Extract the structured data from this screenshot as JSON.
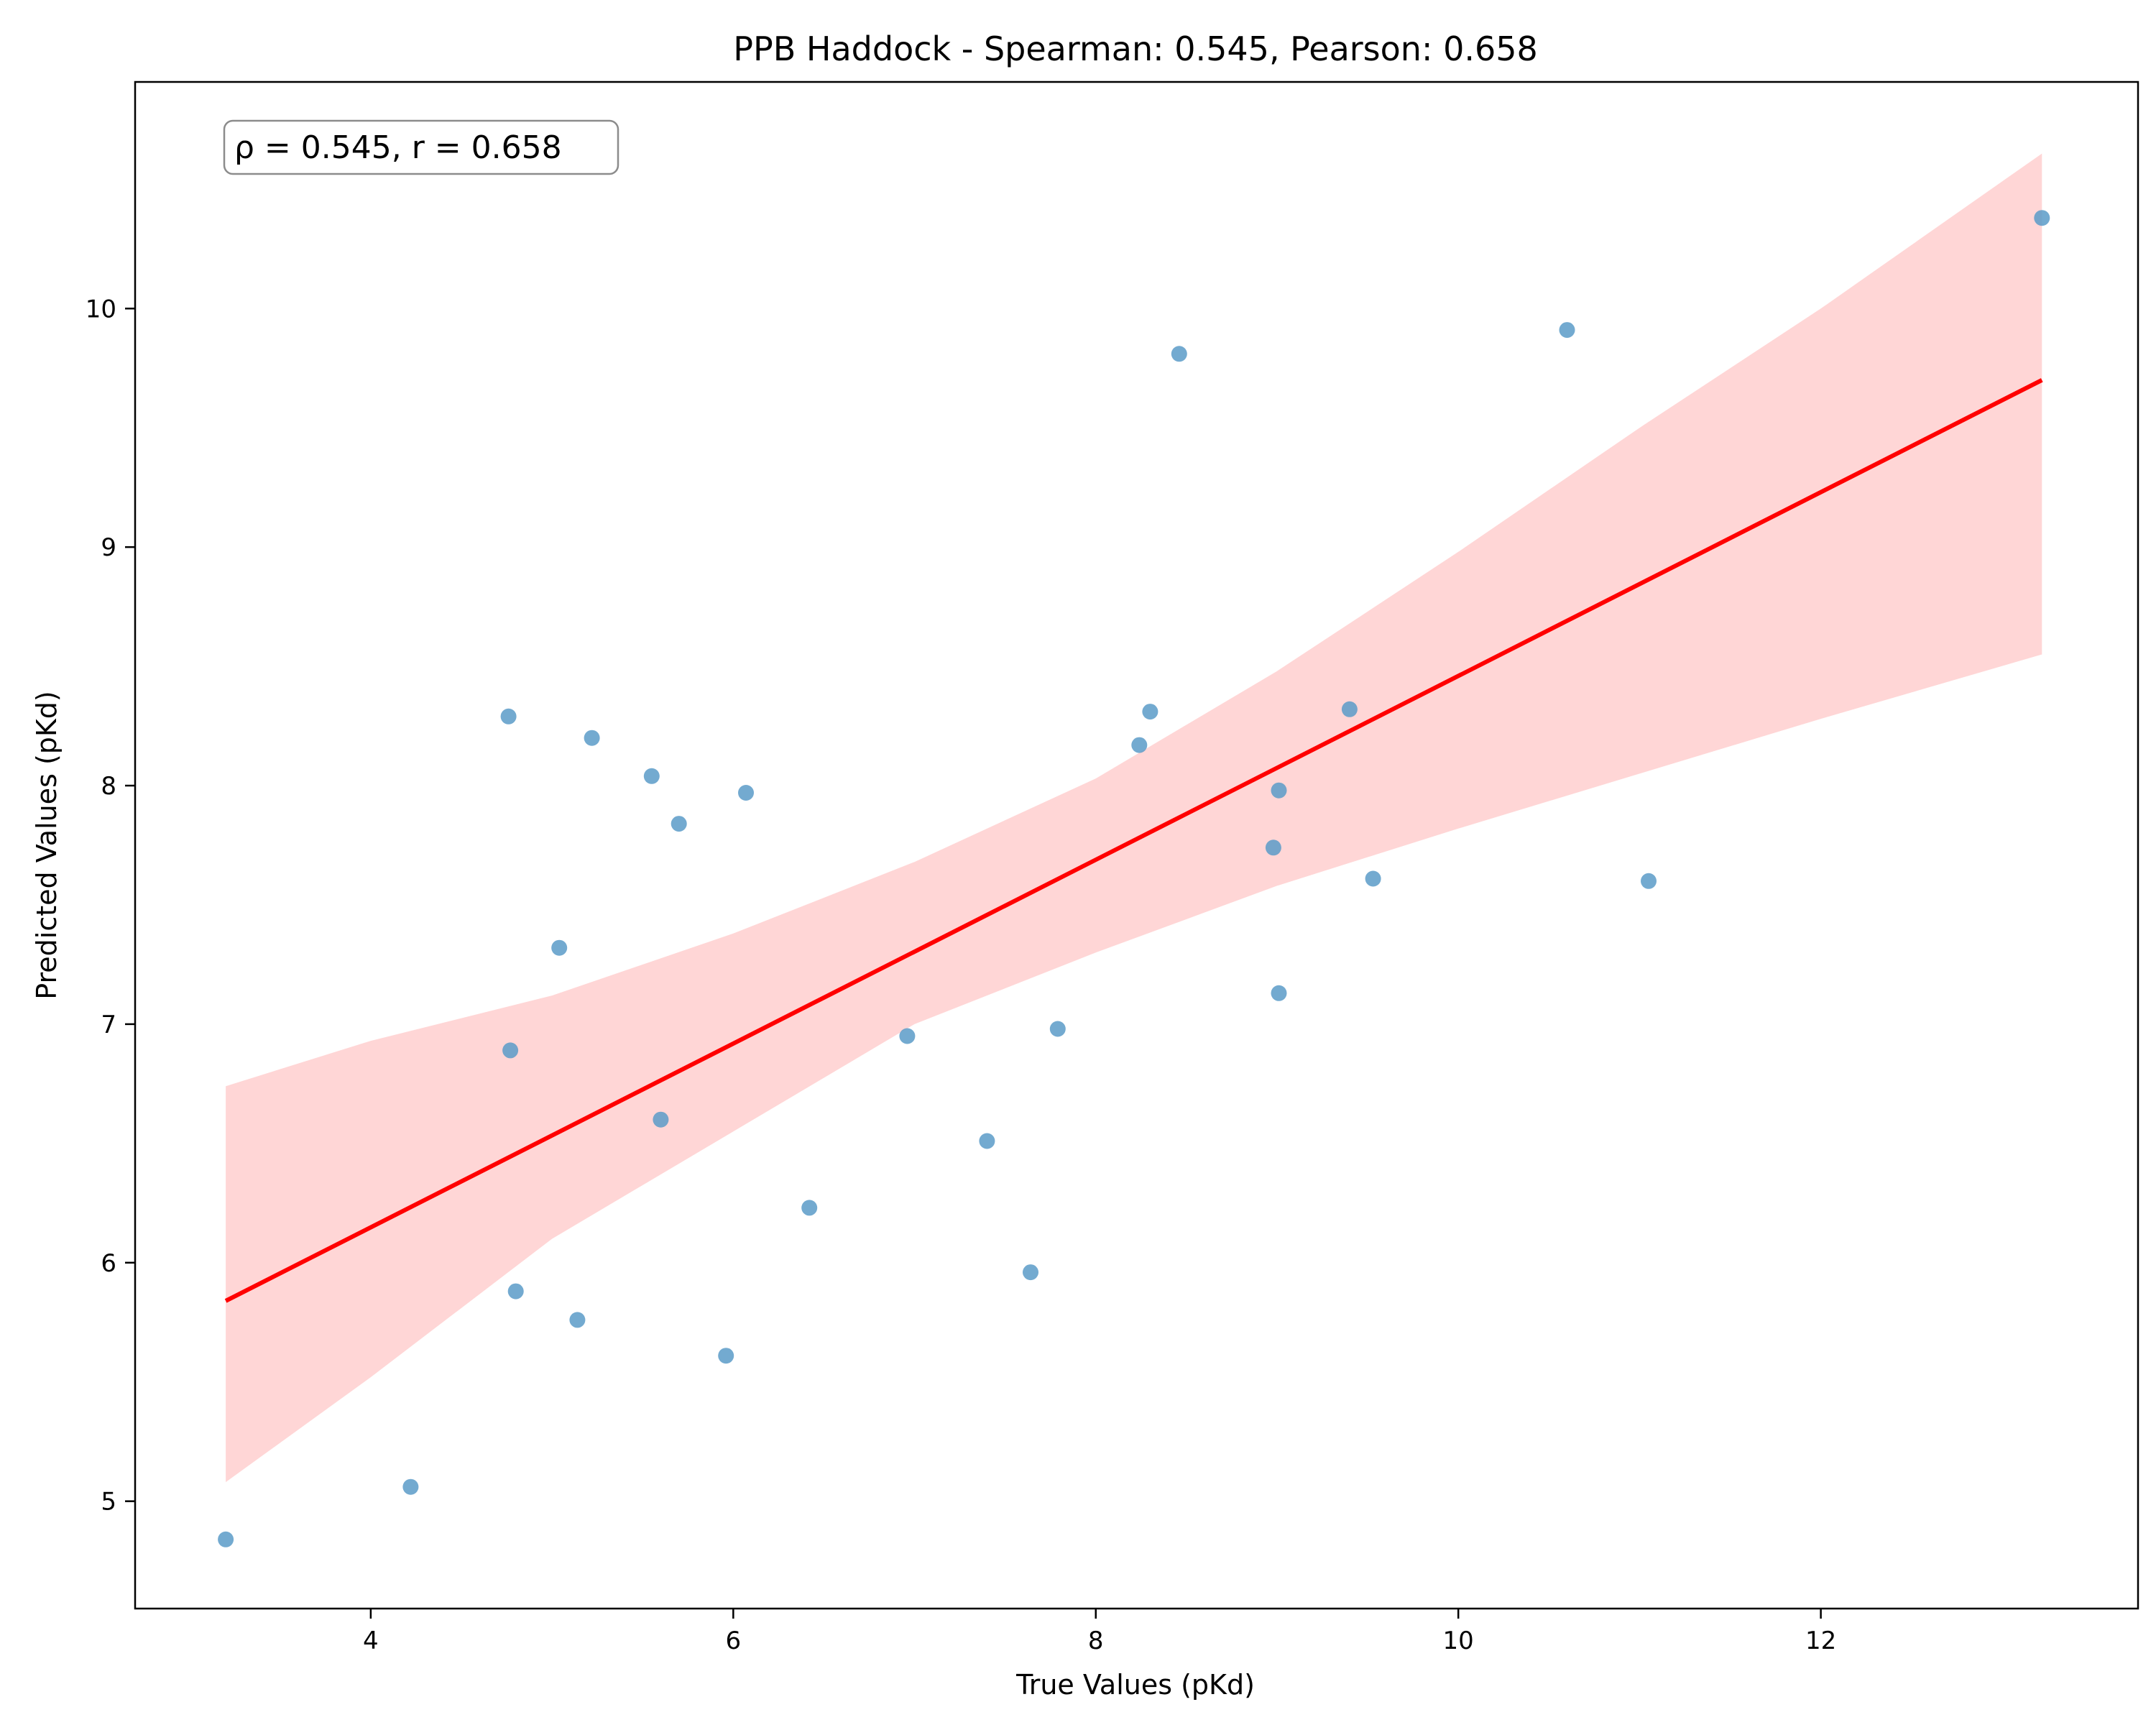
{
  "chart_data": {
    "type": "scatter",
    "title": "PPB Haddock - Spearman: 0.545, Pearson: 0.658",
    "xlabel": "True Values (pKd)",
    "ylabel": "Predicted Values (pKd)",
    "annotation": "ρ = 0.545, r = 0.658",
    "xlim": [
      2.7,
      13.75
    ],
    "ylim": [
      4.55,
      10.95
    ],
    "xticks": [
      4,
      6,
      8,
      10,
      12
    ],
    "yticks": [
      5,
      6,
      7,
      8,
      9,
      10
    ],
    "grid": false,
    "colors": {
      "points": "#5b9bc8",
      "fit_line": "#ff0000",
      "confidence_band": "#ffcccc"
    },
    "points": [
      {
        "x": 3.2,
        "y": 4.84
      },
      {
        "x": 4.22,
        "y": 5.06
      },
      {
        "x": 4.76,
        "y": 8.29
      },
      {
        "x": 4.77,
        "y": 6.89
      },
      {
        "x": 4.8,
        "y": 5.88
      },
      {
        "x": 5.04,
        "y": 7.32
      },
      {
        "x": 5.14,
        "y": 5.76
      },
      {
        "x": 5.22,
        "y": 8.2
      },
      {
        "x": 5.55,
        "y": 8.04
      },
      {
        "x": 5.6,
        "y": 6.6
      },
      {
        "x": 5.7,
        "y": 7.84
      },
      {
        "x": 5.96,
        "y": 5.61
      },
      {
        "x": 6.07,
        "y": 7.97
      },
      {
        "x": 6.42,
        "y": 6.23
      },
      {
        "x": 6.96,
        "y": 6.95
      },
      {
        "x": 7.4,
        "y": 6.51
      },
      {
        "x": 7.64,
        "y": 5.96
      },
      {
        "x": 7.79,
        "y": 6.98
      },
      {
        "x": 8.24,
        "y": 8.17
      },
      {
        "x": 8.3,
        "y": 8.31
      },
      {
        "x": 8.46,
        "y": 9.81
      },
      {
        "x": 8.98,
        "y": 7.74
      },
      {
        "x": 9.01,
        "y": 7.13
      },
      {
        "x": 9.01,
        "y": 7.98
      },
      {
        "x": 9.4,
        "y": 8.32
      },
      {
        "x": 9.53,
        "y": 7.61
      },
      {
        "x": 10.6,
        "y": 9.91
      },
      {
        "x": 11.05,
        "y": 7.6
      },
      {
        "x": 13.22,
        "y": 10.38
      }
    ],
    "fit_line": {
      "x": [
        3.2,
        13.22
      ],
      "y": [
        5.84,
        9.7
      ]
    },
    "confidence_band": {
      "x": [
        3.2,
        4.0,
        5.0,
        6.0,
        7.0,
        8.0,
        9.0,
        10.0,
        11.0,
        12.0,
        13.22
      ],
      "lower": [
        5.08,
        5.52,
        6.1,
        6.55,
        7.0,
        7.3,
        7.58,
        7.82,
        8.05,
        8.28,
        8.55
      ],
      "upper": [
        6.74,
        6.93,
        7.12,
        7.38,
        7.68,
        8.03,
        8.48,
        8.98,
        9.5,
        10.0,
        10.65
      ]
    }
  }
}
